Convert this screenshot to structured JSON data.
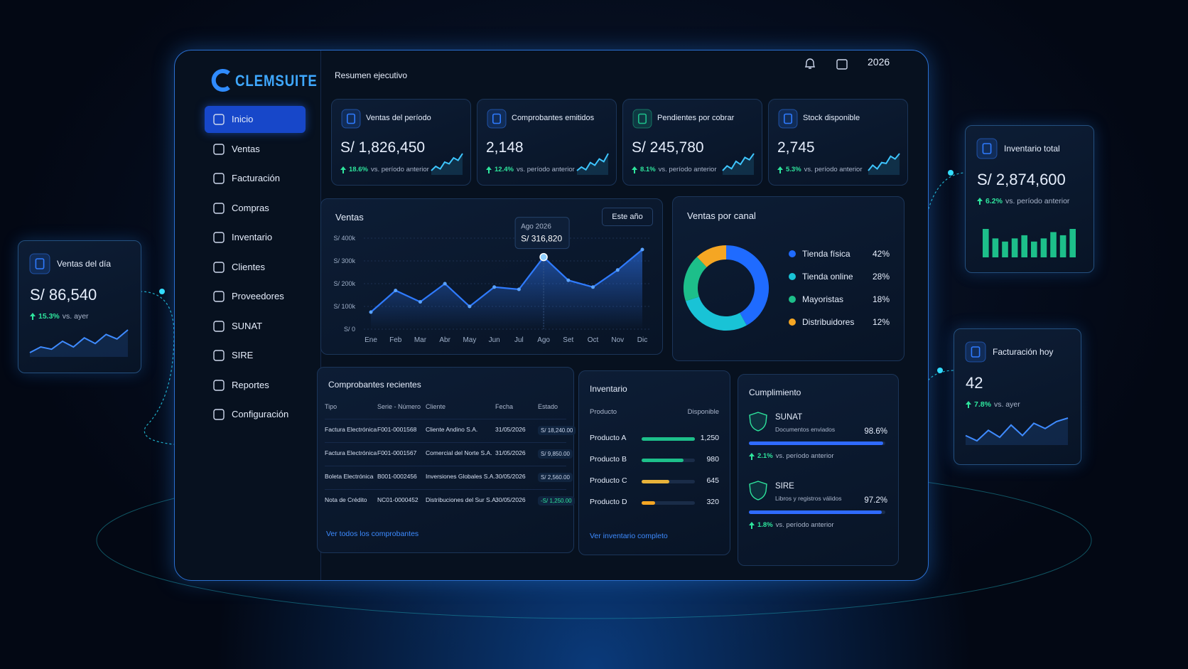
{
  "brand": "CLEMSUITE",
  "header": {
    "view": "Resumen ejecutivo",
    "year": "2026"
  },
  "nav": [
    "Inicio",
    "Ventas",
    "Facturación",
    "Compras",
    "Inventario",
    "Clientes",
    "Proveedores",
    "SUNAT",
    "SIRE",
    "Reportes",
    "Configuración"
  ],
  "kpis": [
    {
      "title": "Ventas del período",
      "value": "S/ 1,826,450",
      "change": "18.6%",
      "note": "vs. período anterior",
      "spark": [
        3,
        4,
        3.4,
        5,
        4.6,
        6,
        5.4,
        7
      ]
    },
    {
      "title": "Comprobantes emitidos",
      "value": "2,148",
      "change": "12.4%",
      "note": "vs. período anterior",
      "spark": [
        3,
        3.8,
        3.2,
        4.8,
        4.2,
        5.6,
        5,
        6.8
      ]
    },
    {
      "title": "Pendientes por cobrar",
      "value": "S/ 245,780",
      "change": "8.1%",
      "note": "vs. período anterior",
      "spark": [
        2.8,
        4,
        3.3,
        5.2,
        4.4,
        6.2,
        5.6,
        7.2
      ]
    },
    {
      "title": "Stock disponible",
      "value": "2,745",
      "change": "5.3%",
      "note": "vs. período anterior",
      "spark": [
        3.2,
        4.4,
        3.6,
        5,
        4.8,
        6.4,
        5.8,
        7
      ]
    }
  ],
  "sales": {
    "type": "line",
    "title": "Ventas",
    "filter": "Este año",
    "categories": [
      "Ene",
      "Feb",
      "Mar",
      "Abr",
      "May",
      "Jun",
      "Jul",
      "Ago",
      "Set",
      "Oct",
      "Nov",
      "Dic"
    ],
    "values": [
      75000,
      170000,
      120000,
      200000,
      100000,
      185000,
      175000,
      316820,
      215000,
      185000,
      260000,
      350000
    ],
    "color": "#2f7bff",
    "ylim": [
      0,
      400000
    ],
    "yticks": [
      {
        "value": 0,
        "label": "S/ 0"
      },
      {
        "value": 100000,
        "label": "S/ 100k"
      },
      {
        "value": 200000,
        "label": "S/ 200k"
      },
      {
        "value": 300000,
        "label": "S/ 300k"
      },
      {
        "value": 400000,
        "label": "S/ 400k"
      }
    ],
    "grid": true,
    "tooltip": {
      "title": "Ago 2026",
      "value_label": "S/ 316,820"
    }
  },
  "channels": {
    "type": "pie",
    "title": "Ventas por canal",
    "categories": [
      "Tienda física",
      "Tienda online",
      "Mayoristas",
      "Distribuidores"
    ],
    "values": [
      42,
      28,
      18,
      12
    ],
    "value_labels": [
      "42%",
      "28%",
      "18%",
      "12%"
    ],
    "colors": [
      "#1f6bff",
      "#19c3d6",
      "#1dbf8a",
      "#f5a623"
    ]
  },
  "receipts": {
    "title": "Comprobantes recientes",
    "columns": [
      "Tipo",
      "Serie - Número",
      "Cliente",
      "Fecha",
      "Estado"
    ],
    "rows": [
      [
        "Factura Electrónica",
        "F001-0001568",
        "Cliente Andino S.A.",
        "31/05/2026",
        "S/ 18,240.00"
      ],
      [
        "Factura Electrónica",
        "F001-0001567",
        "Comercial del Norte S.A.",
        "31/05/2026",
        "S/ 9,850.00"
      ],
      [
        "Boleta Electrónica",
        "B001-0002456",
        "Inversiones Globales S.A.",
        "30/05/2026",
        "S/ 2,560.00"
      ],
      [
        "Nota de Crédito",
        "NC01-0000452",
        "Distribuciones del Sur S.A.",
        "30/05/2026",
        "-S/ 1,250.00"
      ]
    ],
    "link": "Ver todos los comprobantes"
  },
  "inventory": {
    "title": "Inventario",
    "columns": [
      "Producto",
      "Disponible"
    ],
    "products": [
      "Producto A",
      "Producto B",
      "Producto C",
      "Producto D"
    ],
    "values": [
      1250,
      980,
      645,
      320
    ],
    "value_labels": [
      "1,250",
      "980",
      "645",
      "320"
    ],
    "colors": [
      "#1dbf8a",
      "#1dbf8a",
      "#e8b33a",
      "#f5a623"
    ],
    "link": "Ver inventario completo"
  },
  "compliance": {
    "title": "Cumplimiento",
    "items": [
      {
        "name": "SUNAT",
        "subtitle": "Documentos enviados",
        "value": 98.6,
        "value_label": "98.6%",
        "change": "2.1%",
        "note": "vs. período anterior"
      },
      {
        "name": "SIRE",
        "subtitle": "Libros y registros válidos",
        "value": 97.2,
        "value_label": "97.2%",
        "change": "1.8%",
        "note": "vs. período anterior"
      }
    ]
  },
  "floating": [
    {
      "title": "Ventas del día",
      "value": "S/ 86,540",
      "change": "15.3%",
      "note": "vs. ayer",
      "spark": [
        2,
        3,
        2.6,
        4,
        3,
        4.6,
        3.6,
        5.2,
        4.4,
        6
      ]
    },
    {
      "title": "Inventario total",
      "value": "S/ 2,874,600",
      "change": "6.2%",
      "note": "vs. período anterior",
      "bars": [
        9,
        6,
        5,
        6,
        7,
        5,
        6,
        8,
        7,
        9
      ]
    },
    {
      "title": "Facturación hoy",
      "value": "42",
      "change": "7.8%",
      "note": "vs. ayer",
      "spark": [
        3,
        2.4,
        3.6,
        2.8,
        4.2,
        3,
        4.4,
        3.8,
        4.6,
        5
      ]
    }
  ]
}
